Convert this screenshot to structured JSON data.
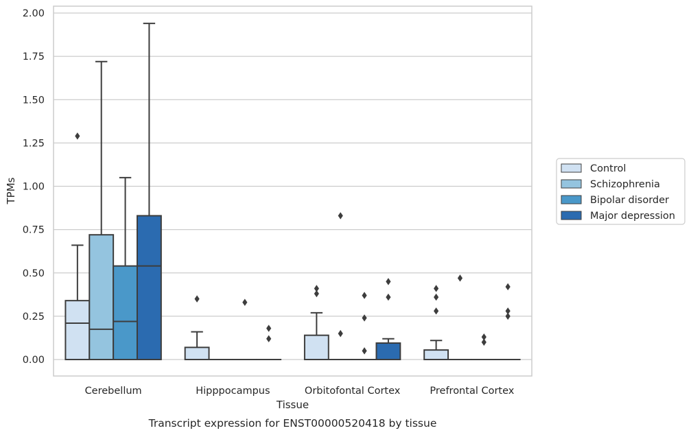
{
  "chart_data": {
    "type": "box",
    "title": "Transcript expression for ENST00000520418 by tissue",
    "xlabel": "Tissue",
    "ylabel": "TPMs",
    "ylim": [
      -0.095,
      2.04
    ],
    "yticks": [
      "0.00",
      "0.25",
      "0.50",
      "0.75",
      "1.00",
      "1.25",
      "1.50",
      "1.75",
      "2.00"
    ],
    "grid": true,
    "legend_position": "right",
    "categories": [
      "Cerebellum",
      "Hipppocampus",
      "Orbitofontal Cortex",
      "Prefrontal Cortex"
    ],
    "series": [
      {
        "name": "Control",
        "color": "#d0e1f2",
        "boxes": [
          {
            "q1": 0.0,
            "median": 0.21,
            "q3": 0.34,
            "whisker_low": 0.0,
            "whisker_high": 0.66,
            "outliers": [
              1.29
            ]
          },
          {
            "q1": 0.0,
            "median": 0.0,
            "q3": 0.07,
            "whisker_low": 0.0,
            "whisker_high": 0.16,
            "outliers": [
              0.35
            ]
          },
          {
            "q1": 0.0,
            "median": 0.0,
            "q3": 0.14,
            "whisker_low": 0.0,
            "whisker_high": 0.27,
            "outliers": [
              0.38,
              0.41
            ]
          },
          {
            "q1": 0.0,
            "median": 0.0,
            "q3": 0.055,
            "whisker_low": 0.0,
            "whisker_high": 0.11,
            "outliers": [
              0.28,
              0.36,
              0.41
            ]
          }
        ]
      },
      {
        "name": "Schizophrenia",
        "color": "#94c4df",
        "boxes": [
          {
            "q1": 0.0,
            "median": 0.175,
            "q3": 0.72,
            "whisker_low": 0.0,
            "whisker_high": 1.72,
            "outliers": []
          },
          {
            "q1": 0.0,
            "median": 0.0,
            "q3": 0.0,
            "whisker_low": 0.0,
            "whisker_high": 0.0,
            "outliers": []
          },
          {
            "q1": 0.0,
            "median": 0.0,
            "q3": 0.0,
            "whisker_low": 0.0,
            "whisker_high": 0.0,
            "outliers": [
              0.15,
              0.83
            ]
          },
          {
            "q1": 0.0,
            "median": 0.0,
            "q3": 0.0,
            "whisker_low": 0.0,
            "whisker_high": 0.0,
            "outliers": [
              0.47
            ]
          }
        ]
      },
      {
        "name": "Bipolar disorder",
        "color": "#4a98c9",
        "boxes": [
          {
            "q1": 0.0,
            "median": 0.22,
            "q3": 0.54,
            "whisker_low": 0.0,
            "whisker_high": 1.05,
            "outliers": []
          },
          {
            "q1": 0.0,
            "median": 0.0,
            "q3": 0.0,
            "whisker_low": 0.0,
            "whisker_high": 0.0,
            "outliers": [
              0.33
            ]
          },
          {
            "q1": 0.0,
            "median": 0.0,
            "q3": 0.0,
            "whisker_low": 0.0,
            "whisker_high": 0.0,
            "outliers": [
              0.05,
              0.24,
              0.37
            ]
          },
          {
            "q1": 0.0,
            "median": 0.0,
            "q3": 0.0,
            "whisker_low": 0.0,
            "whisker_high": 0.0,
            "outliers": [
              0.1,
              0.13
            ]
          }
        ]
      },
      {
        "name": "Major depression",
        "color": "#2b6bb0",
        "boxes": [
          {
            "q1": 0.0,
            "median": 0.54,
            "q3": 0.83,
            "whisker_low": 0.0,
            "whisker_high": 1.94,
            "outliers": []
          },
          {
            "q1": 0.0,
            "median": 0.0,
            "q3": 0.0,
            "whisker_low": 0.0,
            "whisker_high": 0.0,
            "outliers": [
              0.12,
              0.18
            ]
          },
          {
            "q1": 0.0,
            "median": 0.0,
            "q3": 0.095,
            "whisker_low": 0.0,
            "whisker_high": 0.12,
            "outliers": [
              0.36,
              0.45
            ]
          },
          {
            "q1": 0.0,
            "median": 0.0,
            "q3": 0.0,
            "whisker_low": 0.0,
            "whisker_high": 0.0,
            "outliers": [
              0.25,
              0.28,
              0.42
            ]
          }
        ]
      }
    ]
  }
}
